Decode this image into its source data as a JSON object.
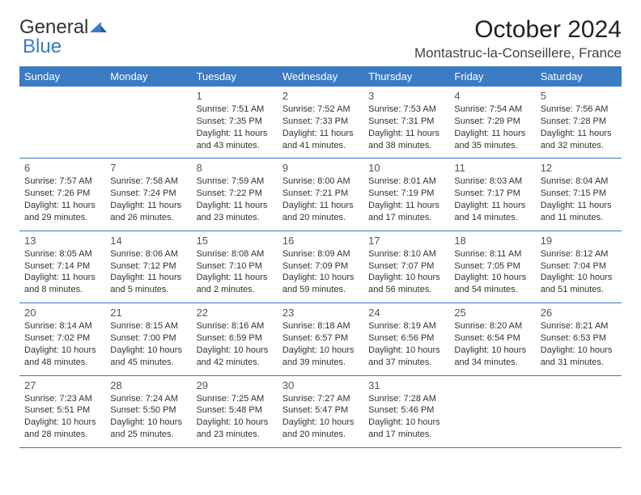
{
  "logo": {
    "text1": "General",
    "text2": "Blue"
  },
  "header": {
    "title": "October 2024",
    "location": "Montastruc-la-Conseillere, France"
  },
  "colors": {
    "header_bg": "#3b7bc4",
    "header_text": "#ffffff",
    "border": "#3b7bc4",
    "text": "#333333"
  },
  "days_of_week": [
    "Sunday",
    "Monday",
    "Tuesday",
    "Wednesday",
    "Thursday",
    "Friday",
    "Saturday"
  ],
  "weeks": [
    [
      null,
      null,
      {
        "n": "1",
        "sunrise": "7:51 AM",
        "sunset": "7:35 PM",
        "daylight": "11 hours and 43 minutes."
      },
      {
        "n": "2",
        "sunrise": "7:52 AM",
        "sunset": "7:33 PM",
        "daylight": "11 hours and 41 minutes."
      },
      {
        "n": "3",
        "sunrise": "7:53 AM",
        "sunset": "7:31 PM",
        "daylight": "11 hours and 38 minutes."
      },
      {
        "n": "4",
        "sunrise": "7:54 AM",
        "sunset": "7:29 PM",
        "daylight": "11 hours and 35 minutes."
      },
      {
        "n": "5",
        "sunrise": "7:56 AM",
        "sunset": "7:28 PM",
        "daylight": "11 hours and 32 minutes."
      }
    ],
    [
      {
        "n": "6",
        "sunrise": "7:57 AM",
        "sunset": "7:26 PM",
        "daylight": "11 hours and 29 minutes."
      },
      {
        "n": "7",
        "sunrise": "7:58 AM",
        "sunset": "7:24 PM",
        "daylight": "11 hours and 26 minutes."
      },
      {
        "n": "8",
        "sunrise": "7:59 AM",
        "sunset": "7:22 PM",
        "daylight": "11 hours and 23 minutes."
      },
      {
        "n": "9",
        "sunrise": "8:00 AM",
        "sunset": "7:21 PM",
        "daylight": "11 hours and 20 minutes."
      },
      {
        "n": "10",
        "sunrise": "8:01 AM",
        "sunset": "7:19 PM",
        "daylight": "11 hours and 17 minutes."
      },
      {
        "n": "11",
        "sunrise": "8:03 AM",
        "sunset": "7:17 PM",
        "daylight": "11 hours and 14 minutes."
      },
      {
        "n": "12",
        "sunrise": "8:04 AM",
        "sunset": "7:15 PM",
        "daylight": "11 hours and 11 minutes."
      }
    ],
    [
      {
        "n": "13",
        "sunrise": "8:05 AM",
        "sunset": "7:14 PM",
        "daylight": "11 hours and 8 minutes."
      },
      {
        "n": "14",
        "sunrise": "8:06 AM",
        "sunset": "7:12 PM",
        "daylight": "11 hours and 5 minutes."
      },
      {
        "n": "15",
        "sunrise": "8:08 AM",
        "sunset": "7:10 PM",
        "daylight": "11 hours and 2 minutes."
      },
      {
        "n": "16",
        "sunrise": "8:09 AM",
        "sunset": "7:09 PM",
        "daylight": "10 hours and 59 minutes."
      },
      {
        "n": "17",
        "sunrise": "8:10 AM",
        "sunset": "7:07 PM",
        "daylight": "10 hours and 56 minutes."
      },
      {
        "n": "18",
        "sunrise": "8:11 AM",
        "sunset": "7:05 PM",
        "daylight": "10 hours and 54 minutes."
      },
      {
        "n": "19",
        "sunrise": "8:12 AM",
        "sunset": "7:04 PM",
        "daylight": "10 hours and 51 minutes."
      }
    ],
    [
      {
        "n": "20",
        "sunrise": "8:14 AM",
        "sunset": "7:02 PM",
        "daylight": "10 hours and 48 minutes."
      },
      {
        "n": "21",
        "sunrise": "8:15 AM",
        "sunset": "7:00 PM",
        "daylight": "10 hours and 45 minutes."
      },
      {
        "n": "22",
        "sunrise": "8:16 AM",
        "sunset": "6:59 PM",
        "daylight": "10 hours and 42 minutes."
      },
      {
        "n": "23",
        "sunrise": "8:18 AM",
        "sunset": "6:57 PM",
        "daylight": "10 hours and 39 minutes."
      },
      {
        "n": "24",
        "sunrise": "8:19 AM",
        "sunset": "6:56 PM",
        "daylight": "10 hours and 37 minutes."
      },
      {
        "n": "25",
        "sunrise": "8:20 AM",
        "sunset": "6:54 PM",
        "daylight": "10 hours and 34 minutes."
      },
      {
        "n": "26",
        "sunrise": "8:21 AM",
        "sunset": "6:53 PM",
        "daylight": "10 hours and 31 minutes."
      }
    ],
    [
      {
        "n": "27",
        "sunrise": "7:23 AM",
        "sunset": "5:51 PM",
        "daylight": "10 hours and 28 minutes."
      },
      {
        "n": "28",
        "sunrise": "7:24 AM",
        "sunset": "5:50 PM",
        "daylight": "10 hours and 25 minutes."
      },
      {
        "n": "29",
        "sunrise": "7:25 AM",
        "sunset": "5:48 PM",
        "daylight": "10 hours and 23 minutes."
      },
      {
        "n": "30",
        "sunrise": "7:27 AM",
        "sunset": "5:47 PM",
        "daylight": "10 hours and 20 minutes."
      },
      {
        "n": "31",
        "sunrise": "7:28 AM",
        "sunset": "5:46 PM",
        "daylight": "10 hours and 17 minutes."
      },
      null,
      null
    ]
  ]
}
